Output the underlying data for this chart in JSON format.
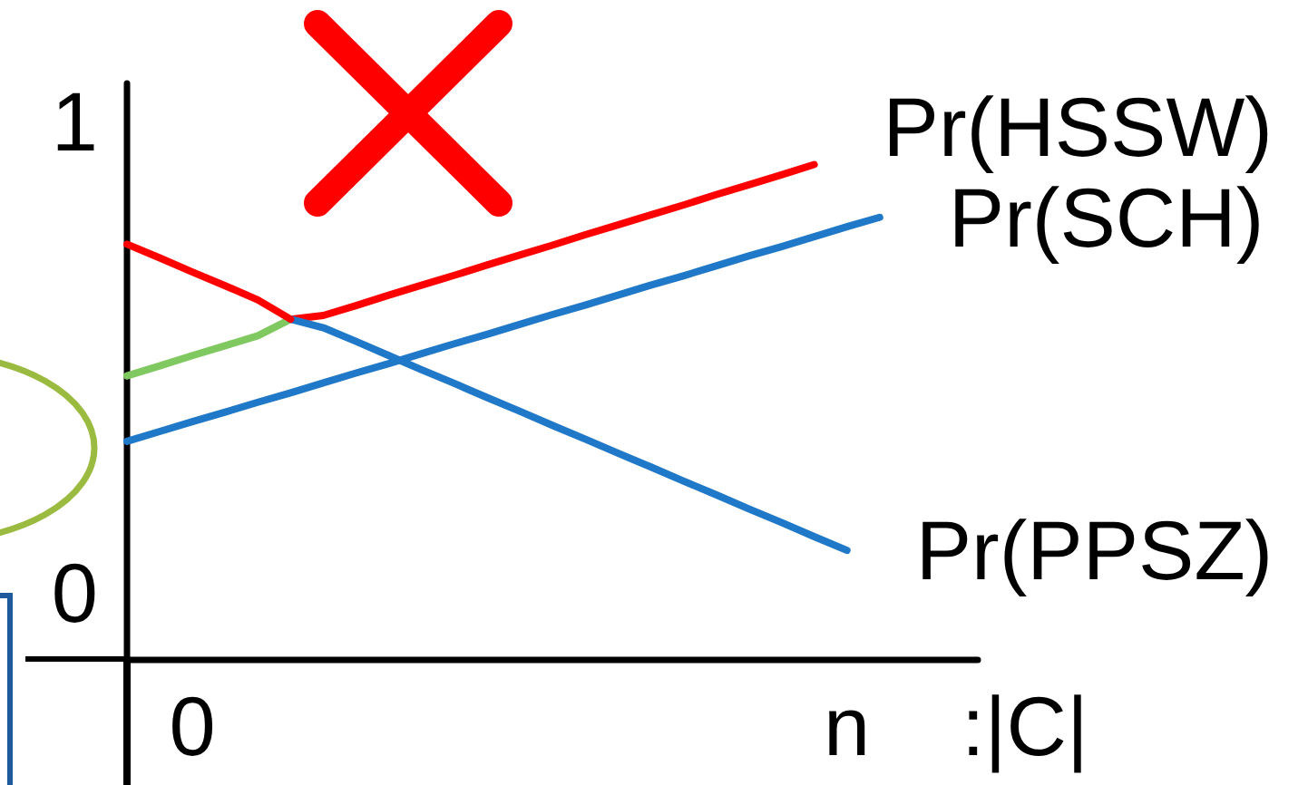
{
  "chart_data": {
    "type": "line",
    "xlabel": ":|C|",
    "categories": [
      null,
      null,
      "0",
      null,
      null,
      null,
      null,
      null,
      null,
      null,
      null,
      null,
      null,
      null,
      null,
      null,
      null,
      null,
      null,
      null,
      null,
      null,
      "n",
      null,
      null,
      null,
      null
    ],
    "ylim": [
      -0.14,
      1.08
    ],
    "yticks": [
      0,
      1
    ],
    "grid": false,
    "legend": false,
    "marker": "none",
    "line_style": "solid",
    "series": [
      {
        "name": "Pr(HSSW)",
        "color": "#ff0000",
        "values": [
          null,
          null,
          null,
          null,
          null,
          0.58,
          0.588,
          0.609,
          0.631,
          0.652,
          0.673,
          0.695,
          0.716,
          0.737,
          0.759,
          0.78,
          0.801,
          0.822,
          0.844,
          0.865,
          0.886,
          0.908,
          null,
          null,
          null,
          null,
          null
        ]
      },
      {
        "color": "#80c860",
        "values": [
          0.46,
          0.481,
          0.503,
          0.524,
          0.545,
          0.58,
          null,
          null,
          null,
          null,
          null,
          null,
          null,
          null,
          null,
          null,
          null,
          null,
          null,
          null,
          null,
          null,
          null,
          null,
          null,
          null,
          null
        ]
      },
      {
        "name": "Pr(SCH)",
        "color": "#1f78c8",
        "values": [
          0.321,
          0.342,
          0.363,
          0.383,
          0.404,
          0.424,
          0.445,
          0.466,
          0.486,
          0.507,
          0.528,
          0.548,
          0.569,
          0.59,
          0.61,
          0.631,
          0.652,
          0.672,
          0.693,
          0.714,
          0.734,
          0.755,
          0.776,
          0.796,
          null,
          null,
          null
        ]
      },
      {
        "name": "Pr(PPSZ)",
        "color": "#1f78c8",
        "values": [
          null,
          null,
          null,
          null,
          null,
          0.58,
          0.562,
          0.533,
          0.503,
          0.473,
          0.444,
          0.414,
          0.385,
          0.355,
          0.326,
          0.296,
          0.267,
          0.237,
          0.208,
          0.178,
          0.149,
          0.119,
          0.09,
          null,
          null,
          null,
          null
        ]
      },
      {
        "color": "#ff0000",
        "values": [
          0.739,
          0.71,
          0.68,
          0.651,
          0.621,
          0.58,
          null,
          null,
          null,
          null,
          null,
          null,
          null,
          null,
          null,
          null,
          null,
          null,
          null,
          null,
          null,
          null,
          null,
          null,
          null,
          null,
          null
        ]
      }
    ]
  }
}
